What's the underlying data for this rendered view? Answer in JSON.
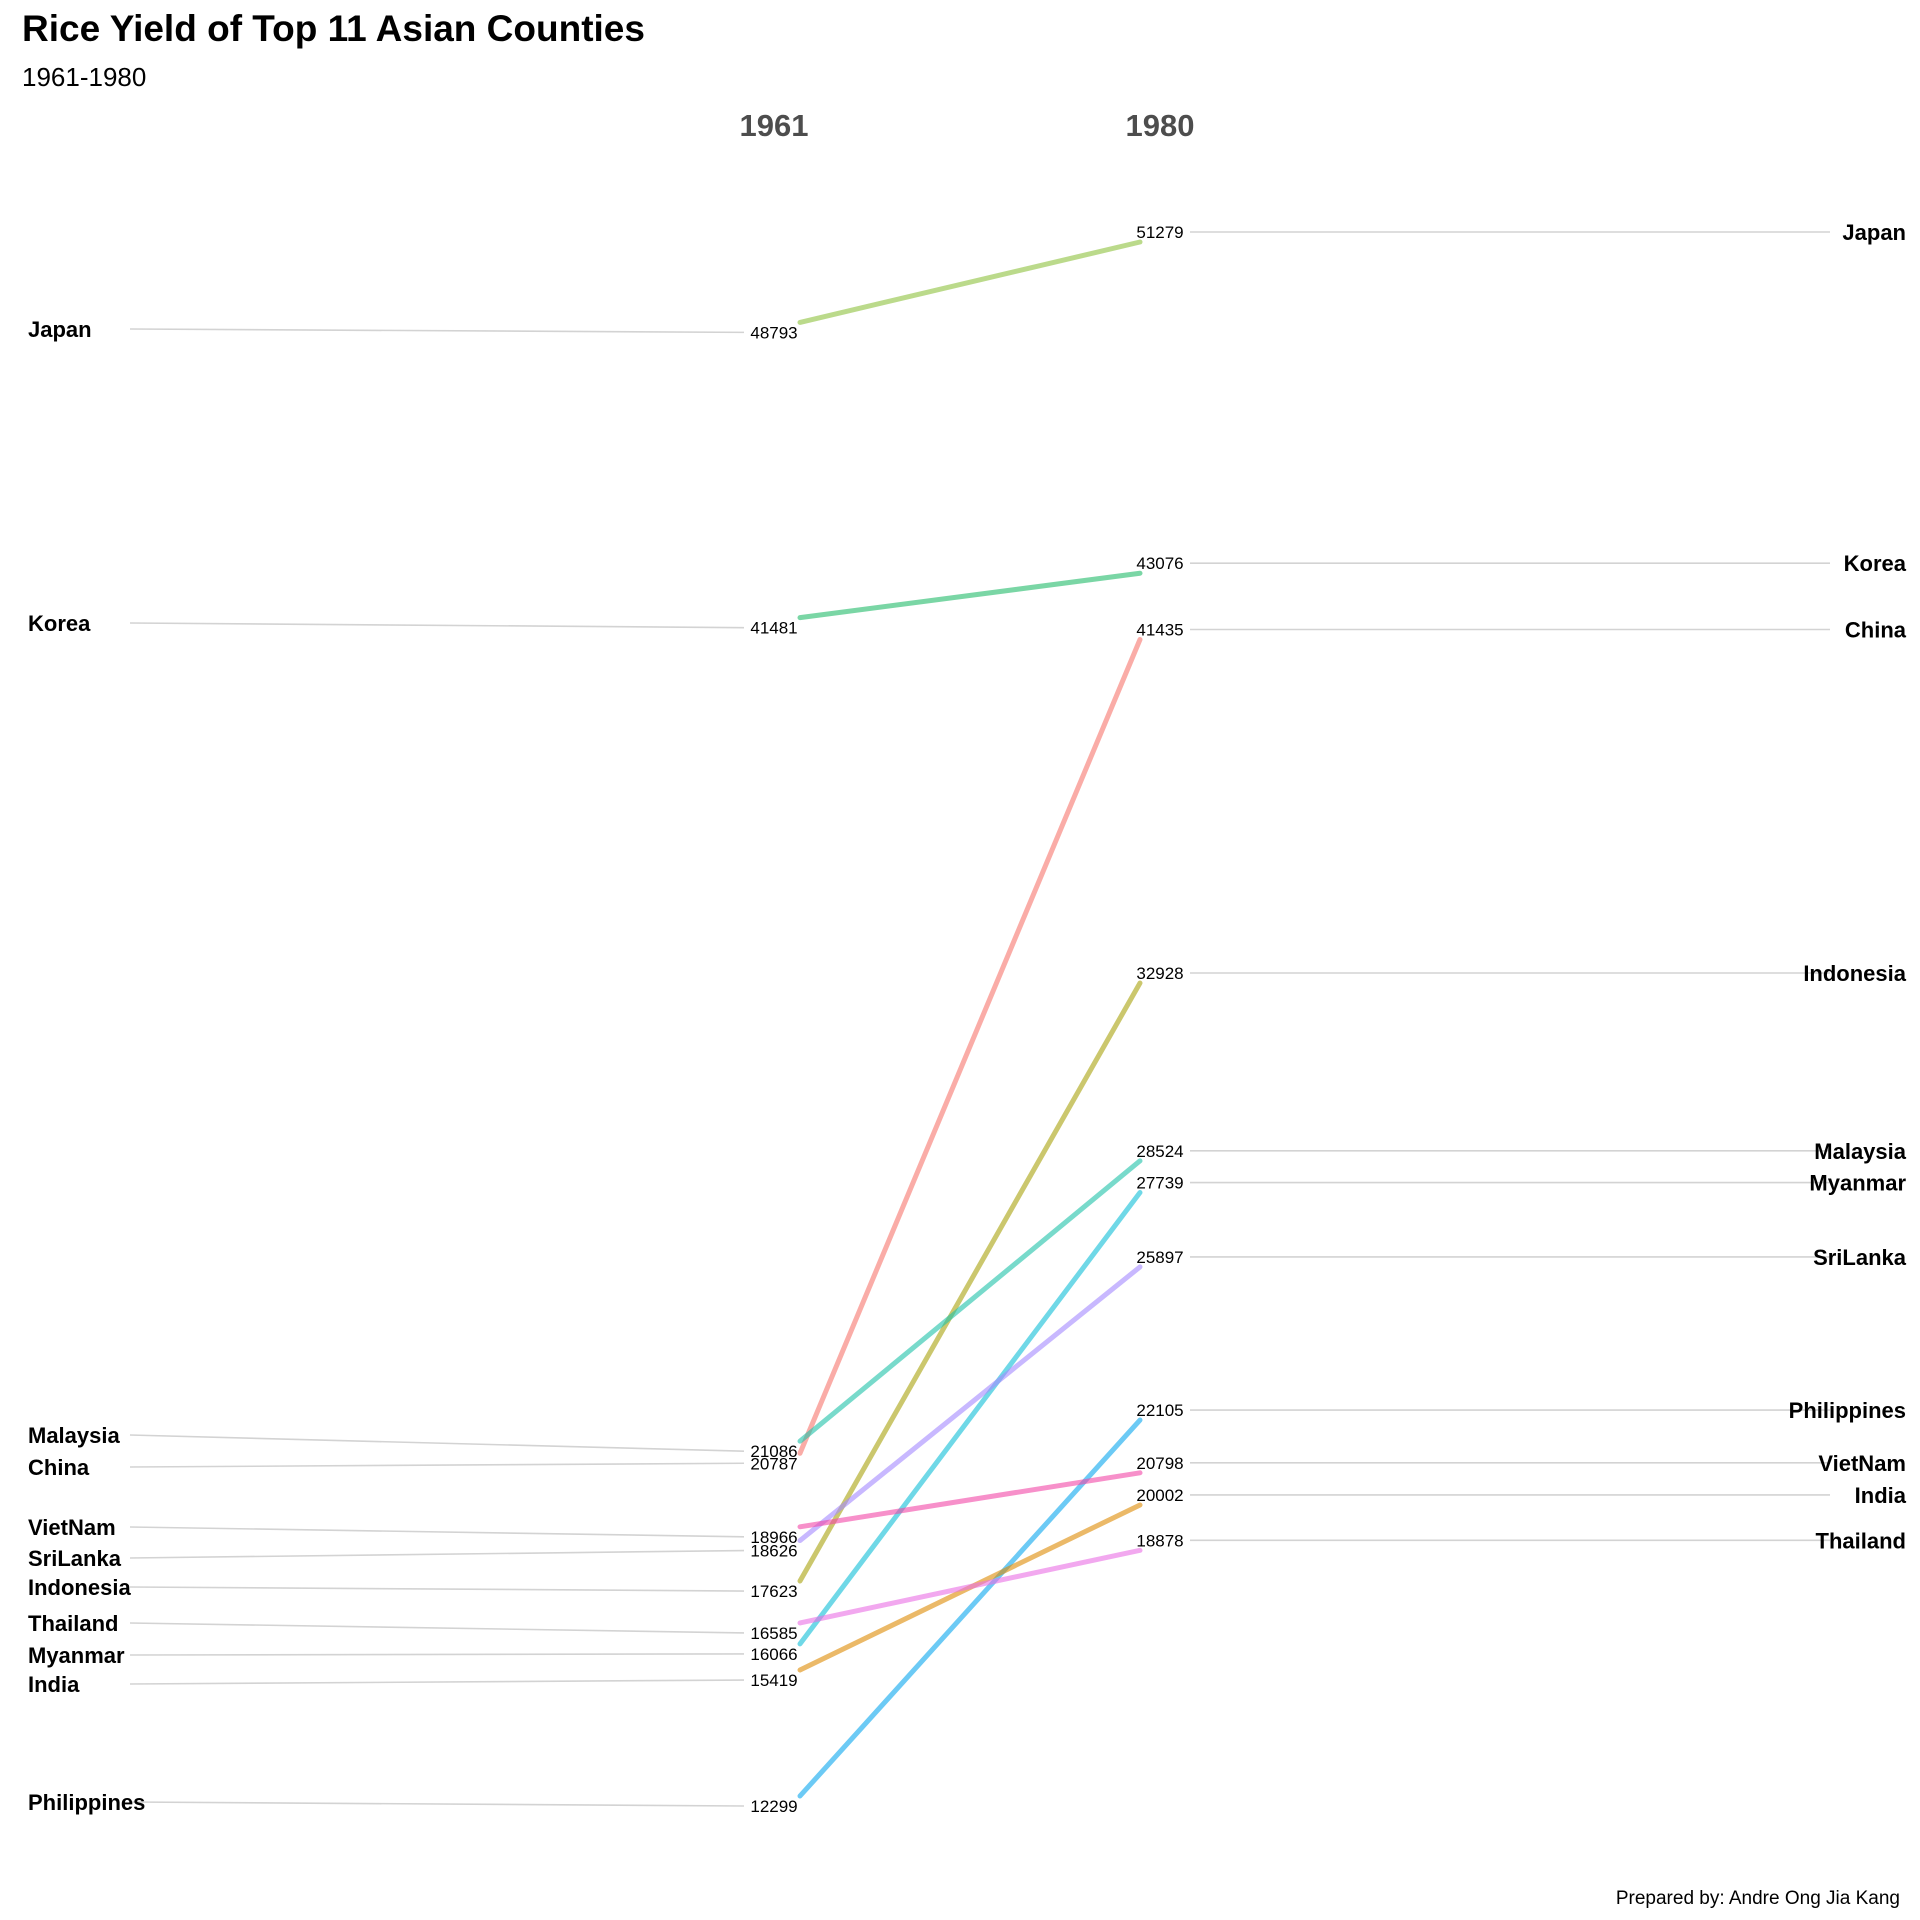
{
  "title": "Rice Yield of Top 11 Asian Counties",
  "subtitle": "1961-1980",
  "caption": "Prepared by: Andre Ong Jia Kang",
  "chart_data": {
    "type": "slope",
    "x": [
      "1961",
      "1980"
    ],
    "series": [
      {
        "name": "Japan",
        "values": [
          48793,
          51279
        ],
        "color": "#8fc33f"
      },
      {
        "name": "Korea",
        "values": [
          41481,
          43076
        ],
        "color": "#23bb6b"
      },
      {
        "name": "China",
        "values": [
          20787,
          41435
        ],
        "color": "#f8766d"
      },
      {
        "name": "Indonesia",
        "values": [
          17623,
          32928
        ],
        "color": "#aaa30d"
      },
      {
        "name": "Malaysia",
        "values": [
          21086,
          28524
        ],
        "color": "#1fc3aa"
      },
      {
        "name": "Myanmar",
        "values": [
          16066,
          27739
        ],
        "color": "#11bfd8"
      },
      {
        "name": "SriLanka",
        "values": [
          18626,
          25897
        ],
        "color": "#a58aff"
      },
      {
        "name": "Philippines",
        "values": [
          12299,
          22105
        ],
        "color": "#0ca8ef"
      },
      {
        "name": "VietNam",
        "values": [
          18966,
          20798
        ],
        "color": "#f247a7"
      },
      {
        "name": "India",
        "values": [
          15419,
          20002
        ],
        "color": "#de8c05"
      },
      {
        "name": "Thailand",
        "values": [
          16585,
          18878
        ],
        "color": "#ea6fe5"
      }
    ]
  }
}
